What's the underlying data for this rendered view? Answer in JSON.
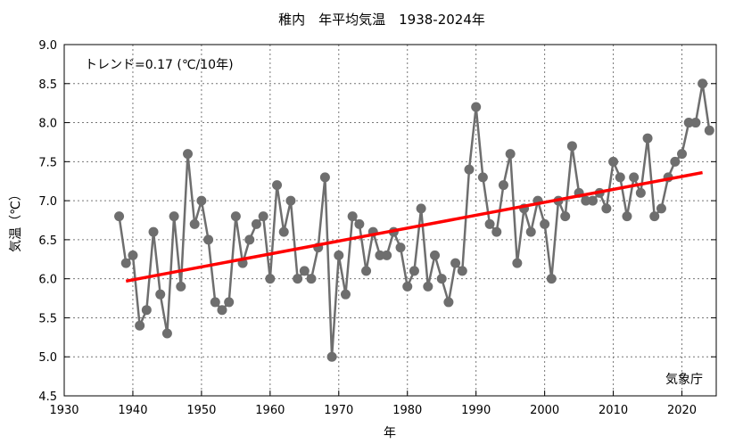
{
  "chart_data": {
    "type": "line",
    "title": "稚内　年平均気温　1938-2024年",
    "xlabel": "年",
    "ylabel": "気温（℃）",
    "xlim": [
      1930,
      2025
    ],
    "ylim": [
      4.5,
      9.0
    ],
    "xticks": [
      1930,
      1940,
      1950,
      1960,
      1970,
      1980,
      1990,
      2000,
      2010,
      2020
    ],
    "yticks": [
      "4.5",
      "5.0",
      "5.5",
      "6.0",
      "6.5",
      "7.0",
      "7.5",
      "8.0",
      "8.5",
      "9.0"
    ],
    "grid": true,
    "annotation_trend": "トレンド=0.17 (℃/10年)",
    "source": "気象庁",
    "series": [
      {
        "name": "年平均気温",
        "color": "#6e6e6e",
        "x": [
          1938,
          1939,
          1940,
          1941,
          1942,
          1943,
          1944,
          1945,
          1946,
          1947,
          1948,
          1949,
          1950,
          1951,
          1952,
          1953,
          1954,
          1955,
          1956,
          1957,
          1958,
          1959,
          1960,
          1961,
          1962,
          1963,
          1964,
          1965,
          1966,
          1967,
          1968,
          1969,
          1970,
          1971,
          1972,
          1973,
          1974,
          1975,
          1976,
          1977,
          1978,
          1979,
          1980,
          1981,
          1982,
          1983,
          1984,
          1985,
          1986,
          1987,
          1988,
          1989,
          1990,
          1991,
          1992,
          1993,
          1994,
          1995,
          1996,
          1997,
          1998,
          1999,
          2000,
          2001,
          2002,
          2003,
          2004,
          2005,
          2006,
          2007,
          2008,
          2009,
          2010,
          2011,
          2012,
          2013,
          2014,
          2015,
          2016,
          2017,
          2018,
          2019,
          2020,
          2021,
          2022,
          2023,
          2024
        ],
        "values": [
          6.8,
          6.2,
          6.3,
          5.4,
          5.6,
          6.6,
          5.8,
          5.3,
          6.8,
          5.9,
          7.6,
          6.7,
          7.0,
          6.5,
          5.7,
          5.6,
          5.7,
          6.8,
          6.2,
          6.5,
          6.7,
          6.8,
          6.0,
          7.2,
          6.6,
          7.0,
          6.0,
          6.1,
          6.0,
          6.4,
          7.3,
          5.0,
          6.3,
          5.8,
          6.8,
          6.7,
          6.1,
          6.6,
          6.3,
          6.3,
          6.6,
          6.4,
          5.9,
          6.1,
          6.9,
          5.9,
          6.3,
          6.0,
          5.7,
          6.2,
          6.1,
          7.4,
          8.2,
          7.3,
          6.7,
          6.6,
          7.2,
          7.6,
          6.2,
          6.9,
          6.6,
          7.0,
          6.7,
          6.0,
          7.0,
          6.8,
          7.7,
          7.1,
          7.0,
          7.0,
          7.1,
          6.9,
          7.5,
          7.3,
          6.8,
          7.3,
          7.1,
          7.8,
          6.8,
          6.9,
          7.3,
          7.5,
          7.6,
          8.0,
          8.0,
          8.5,
          7.9
        ]
      },
      {
        "name": "trend",
        "color": "#ff0000",
        "x": [
          1939,
          2023
        ],
        "values": [
          5.97,
          7.36
        ]
      }
    ]
  }
}
